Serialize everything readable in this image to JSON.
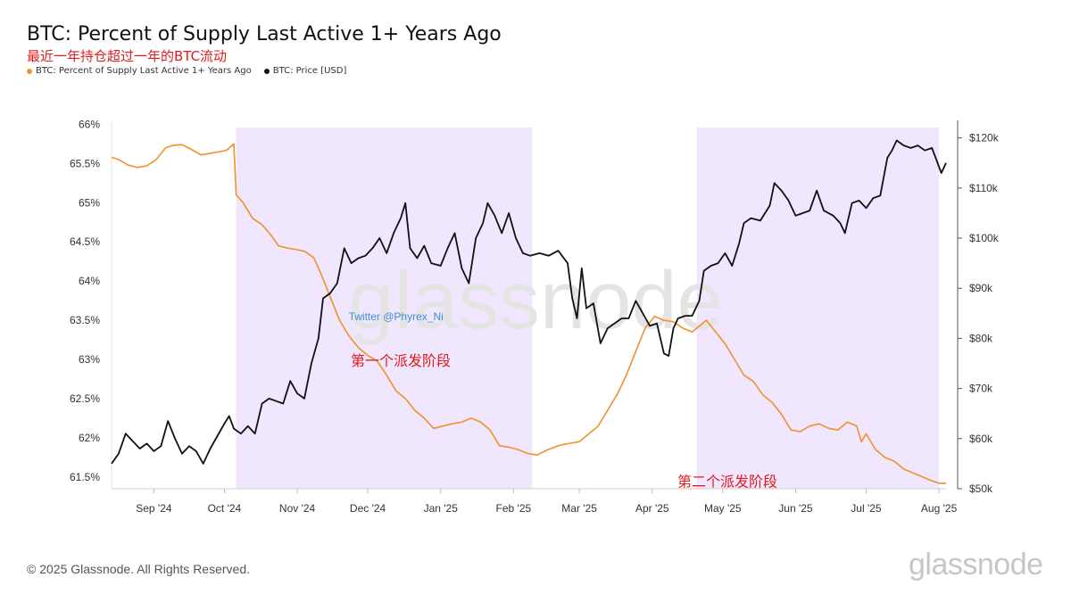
{
  "header": {
    "title": "BTC: Percent of Supply Last Active 1+ Years Ago",
    "subtitle": "最近一年持仓超过一年的BTC流动"
  },
  "legend": [
    {
      "label": "BTC: Percent of Supply Last Active 1+ Years Ago",
      "color": "#f0922b"
    },
    {
      "label": "BTC: Price [USD]",
      "color": "#111111"
    }
  ],
  "footer": {
    "copyright": "© 2025 Glassnode. All Rights Reserved.",
    "brand": "glassnode"
  },
  "chart_data": {
    "type": "line",
    "x_range": [
      "2024-08-14",
      "2025-08-04"
    ],
    "x_ticks": [
      {
        "date": "2024-09-01",
        "label": "Sep '24"
      },
      {
        "date": "2024-10-01",
        "label": "Oct '24"
      },
      {
        "date": "2024-11-01",
        "label": "Nov '24"
      },
      {
        "date": "2024-12-01",
        "label": "Dec '24"
      },
      {
        "date": "2025-01-01",
        "label": "Jan '25"
      },
      {
        "date": "2025-02-01",
        "label": "Feb '25"
      },
      {
        "date": "2025-03-01",
        "label": "Mar '25"
      },
      {
        "date": "2025-04-01",
        "label": "Apr '25"
      },
      {
        "date": "2025-05-01",
        "label": "May '25"
      },
      {
        "date": "2025-06-01",
        "label": "Jun '25"
      },
      {
        "date": "2025-07-01",
        "label": "Jul '25"
      },
      {
        "date": "2025-08-01",
        "label": "Aug '25"
      }
    ],
    "y_left": {
      "range": [
        61.35,
        66.05
      ],
      "ticks": [
        61.5,
        62,
        62.5,
        63,
        63.5,
        64,
        64.5,
        65,
        65.5,
        66
      ],
      "tick_labels": [
        "61.5%",
        "62%",
        "62.5%",
        "63%",
        "63.5%",
        "64%",
        "64.5%",
        "65%",
        "65.5%",
        "66%"
      ]
    },
    "y_right": {
      "range": [
        50000,
        123500
      ],
      "ticks": [
        50000,
        60000,
        70000,
        80000,
        90000,
        100000,
        110000,
        120000
      ],
      "tick_labels": [
        "$50k",
        "$60k",
        "$70k",
        "$80k",
        "$90k",
        "$100k",
        "$110k",
        "$120k"
      ]
    },
    "shaded_regions": [
      {
        "start": "2024-10-06",
        "end": "2025-02-09",
        "color": "#f0e6fd"
      },
      {
        "start": "2025-04-20",
        "end": "2025-08-01",
        "color": "#f0e6fd"
      }
    ],
    "series": [
      {
        "name": "BTC: Percent of Supply Last Active 1+ Years Ago",
        "axis": "left",
        "color": "#f0922b",
        "points": [
          [
            "2024-08-14",
            65.58
          ],
          [
            "2024-08-17",
            65.55
          ],
          [
            "2024-08-21",
            65.48
          ],
          [
            "2024-08-25",
            65.45
          ],
          [
            "2024-08-29",
            65.47
          ],
          [
            "2024-09-02",
            65.55
          ],
          [
            "2024-09-06",
            65.7
          ],
          [
            "2024-09-09",
            65.73
          ],
          [
            "2024-09-13",
            65.74
          ],
          [
            "2024-09-17",
            65.68
          ],
          [
            "2024-09-21",
            65.61
          ],
          [
            "2024-09-25",
            65.63
          ],
          [
            "2024-09-29",
            65.65
          ],
          [
            "2024-10-02",
            65.67
          ],
          [
            "2024-10-05",
            65.75
          ],
          [
            "2024-10-06",
            65.1
          ],
          [
            "2024-10-09",
            65.0
          ],
          [
            "2024-10-13",
            64.8
          ],
          [
            "2024-10-17",
            64.72
          ],
          [
            "2024-10-21",
            64.58
          ],
          [
            "2024-10-24",
            64.45
          ],
          [
            "2024-10-28",
            64.42
          ],
          [
            "2024-11-01",
            64.4
          ],
          [
            "2024-11-04",
            64.38
          ],
          [
            "2024-11-08",
            64.3
          ],
          [
            "2024-11-11",
            64.1
          ],
          [
            "2024-11-15",
            63.8
          ],
          [
            "2024-11-19",
            63.5
          ],
          [
            "2024-11-23",
            63.3
          ],
          [
            "2024-11-27",
            63.15
          ],
          [
            "2024-12-01",
            63.05
          ],
          [
            "2024-12-05",
            62.98
          ],
          [
            "2024-12-09",
            62.8
          ],
          [
            "2024-12-13",
            62.6
          ],
          [
            "2024-12-17",
            62.5
          ],
          [
            "2024-12-21",
            62.35
          ],
          [
            "2024-12-25",
            62.25
          ],
          [
            "2024-12-29",
            62.12
          ],
          [
            "2025-01-02",
            62.15
          ],
          [
            "2025-01-06",
            62.18
          ],
          [
            "2025-01-10",
            62.2
          ],
          [
            "2025-01-14",
            62.25
          ],
          [
            "2025-01-18",
            62.2
          ],
          [
            "2025-01-22",
            62.1
          ],
          [
            "2025-01-26",
            61.9
          ],
          [
            "2025-01-30",
            61.88
          ],
          [
            "2025-02-03",
            61.85
          ],
          [
            "2025-02-07",
            61.8
          ],
          [
            "2025-02-11",
            61.78
          ],
          [
            "2025-02-15",
            61.84
          ],
          [
            "2025-02-20",
            61.9
          ],
          [
            "2025-02-25",
            61.93
          ],
          [
            "2025-03-01",
            61.95
          ],
          [
            "2025-03-05",
            62.05
          ],
          [
            "2025-03-09",
            62.15
          ],
          [
            "2025-03-13",
            62.35
          ],
          [
            "2025-03-17",
            62.55
          ],
          [
            "2025-03-21",
            62.8
          ],
          [
            "2025-03-25",
            63.1
          ],
          [
            "2025-03-29",
            63.4
          ],
          [
            "2025-04-02",
            63.55
          ],
          [
            "2025-04-06",
            63.5
          ],
          [
            "2025-04-10",
            63.48
          ],
          [
            "2025-04-14",
            63.4
          ],
          [
            "2025-04-18",
            63.35
          ],
          [
            "2025-04-20",
            63.4
          ],
          [
            "2025-04-24",
            63.5
          ],
          [
            "2025-04-28",
            63.35
          ],
          [
            "2025-05-02",
            63.2
          ],
          [
            "2025-05-06",
            63.0
          ],
          [
            "2025-05-10",
            62.8
          ],
          [
            "2025-05-14",
            62.72
          ],
          [
            "2025-05-18",
            62.55
          ],
          [
            "2025-05-22",
            62.45
          ],
          [
            "2025-05-26",
            62.3
          ],
          [
            "2025-05-30",
            62.1
          ],
          [
            "2025-06-03",
            62.08
          ],
          [
            "2025-06-07",
            62.15
          ],
          [
            "2025-06-11",
            62.18
          ],
          [
            "2025-06-15",
            62.12
          ],
          [
            "2025-06-19",
            62.1
          ],
          [
            "2025-06-23",
            62.2
          ],
          [
            "2025-06-27",
            62.15
          ],
          [
            "2025-06-29",
            61.95
          ],
          [
            "2025-07-01",
            62.05
          ],
          [
            "2025-07-05",
            61.85
          ],
          [
            "2025-07-09",
            61.75
          ],
          [
            "2025-07-13",
            61.7
          ],
          [
            "2025-07-17",
            61.6
          ],
          [
            "2025-07-21",
            61.55
          ],
          [
            "2025-07-25",
            61.5
          ],
          [
            "2025-07-29",
            61.45
          ],
          [
            "2025-08-01",
            61.42
          ],
          [
            "2025-08-04",
            61.42
          ]
        ]
      },
      {
        "name": "BTC: Price [USD]",
        "axis": "right",
        "color": "#111111",
        "points": [
          [
            "2024-08-14",
            55000
          ],
          [
            "2024-08-17",
            57000
          ],
          [
            "2024-08-20",
            61000
          ],
          [
            "2024-08-23",
            59500
          ],
          [
            "2024-08-26",
            58000
          ],
          [
            "2024-08-29",
            59000
          ],
          [
            "2024-09-01",
            57500
          ],
          [
            "2024-09-04",
            58500
          ],
          [
            "2024-09-07",
            63500
          ],
          [
            "2024-09-10",
            60000
          ],
          [
            "2024-09-13",
            57000
          ],
          [
            "2024-09-16",
            58500
          ],
          [
            "2024-09-19",
            57500
          ],
          [
            "2024-09-22",
            55000
          ],
          [
            "2024-09-25",
            58000
          ],
          [
            "2024-09-28",
            60500
          ],
          [
            "2024-10-01",
            63000
          ],
          [
            "2024-10-03",
            64500
          ],
          [
            "2024-10-05",
            62000
          ],
          [
            "2024-10-08",
            61000
          ],
          [
            "2024-10-11",
            62500
          ],
          [
            "2024-10-14",
            61000
          ],
          [
            "2024-10-17",
            67000
          ],
          [
            "2024-10-20",
            68000
          ],
          [
            "2024-10-23",
            67500
          ],
          [
            "2024-10-26",
            67000
          ],
          [
            "2024-10-29",
            71500
          ],
          [
            "2024-11-01",
            69000
          ],
          [
            "2024-11-04",
            68000
          ],
          [
            "2024-11-07",
            75000
          ],
          [
            "2024-11-10",
            80000
          ],
          [
            "2024-11-12",
            88000
          ],
          [
            "2024-11-15",
            89000
          ],
          [
            "2024-11-18",
            91000
          ],
          [
            "2024-11-21",
            98000
          ],
          [
            "2024-11-24",
            95000
          ],
          [
            "2024-11-27",
            96000
          ],
          [
            "2024-11-30",
            96500
          ],
          [
            "2024-12-03",
            98000
          ],
          [
            "2024-12-06",
            100000
          ],
          [
            "2024-12-09",
            97000
          ],
          [
            "2024-12-12",
            101000
          ],
          [
            "2024-12-15",
            104000
          ],
          [
            "2024-12-17",
            107000
          ],
          [
            "2024-12-19",
            98000
          ],
          [
            "2024-12-22",
            96000
          ],
          [
            "2024-12-25",
            98500
          ],
          [
            "2024-12-28",
            95000
          ],
          [
            "2025-01-01",
            94500
          ],
          [
            "2025-01-04",
            98000
          ],
          [
            "2025-01-07",
            101000
          ],
          [
            "2025-01-10",
            94000
          ],
          [
            "2025-01-13",
            91000
          ],
          [
            "2025-01-16",
            100000
          ],
          [
            "2025-01-19",
            103000
          ],
          [
            "2025-01-21",
            107000
          ],
          [
            "2025-01-24",
            104500
          ],
          [
            "2025-01-27",
            101000
          ],
          [
            "2025-01-30",
            105000
          ],
          [
            "2025-02-02",
            100000
          ],
          [
            "2025-02-05",
            97000
          ],
          [
            "2025-02-08",
            96500
          ],
          [
            "2025-02-12",
            97000
          ],
          [
            "2025-02-16",
            96500
          ],
          [
            "2025-02-20",
            97500
          ],
          [
            "2025-02-24",
            95000
          ],
          [
            "2025-02-26",
            88000
          ],
          [
            "2025-02-28",
            84000
          ],
          [
            "2025-03-02",
            94000
          ],
          [
            "2025-03-04",
            86000
          ],
          [
            "2025-03-07",
            87000
          ],
          [
            "2025-03-10",
            79000
          ],
          [
            "2025-03-13",
            82000
          ],
          [
            "2025-03-16",
            83000
          ],
          [
            "2025-03-19",
            84000
          ],
          [
            "2025-03-22",
            84000
          ],
          [
            "2025-03-25",
            87500
          ],
          [
            "2025-03-28",
            85000
          ],
          [
            "2025-03-31",
            82500
          ],
          [
            "2025-04-03",
            83000
          ],
          [
            "2025-04-06",
            77000
          ],
          [
            "2025-04-08",
            76500
          ],
          [
            "2025-04-10",
            82000
          ],
          [
            "2025-04-12",
            84000
          ],
          [
            "2025-04-15",
            84500
          ],
          [
            "2025-04-18",
            84500
          ],
          [
            "2025-04-21",
            87500
          ],
          [
            "2025-04-23",
            93500
          ],
          [
            "2025-04-26",
            94500
          ],
          [
            "2025-04-29",
            95000
          ],
          [
            "2025-05-02",
            97000
          ],
          [
            "2025-05-05",
            94500
          ],
          [
            "2025-05-08",
            99000
          ],
          [
            "2025-05-10",
            103000
          ],
          [
            "2025-05-13",
            104000
          ],
          [
            "2025-05-17",
            103500
          ],
          [
            "2025-05-21",
            106500
          ],
          [
            "2025-05-23",
            111000
          ],
          [
            "2025-05-26",
            109500
          ],
          [
            "2025-05-29",
            107500
          ],
          [
            "2025-06-01",
            104500
          ],
          [
            "2025-06-04",
            105000
          ],
          [
            "2025-06-07",
            105500
          ],
          [
            "2025-06-10",
            109500
          ],
          [
            "2025-06-13",
            105500
          ],
          [
            "2025-06-17",
            104500
          ],
          [
            "2025-06-20",
            103000
          ],
          [
            "2025-06-22",
            101000
          ],
          [
            "2025-06-25",
            107000
          ],
          [
            "2025-06-28",
            107500
          ],
          [
            "2025-07-01",
            106000
          ],
          [
            "2025-07-04",
            108000
          ],
          [
            "2025-07-07",
            108500
          ],
          [
            "2025-07-10",
            116000
          ],
          [
            "2025-07-12",
            117500
          ],
          [
            "2025-07-14",
            119500
          ],
          [
            "2025-07-17",
            118500
          ],
          [
            "2025-07-20",
            118000
          ],
          [
            "2025-07-23",
            118500
          ],
          [
            "2025-07-26",
            117500
          ],
          [
            "2025-07-29",
            118000
          ],
          [
            "2025-07-31",
            115500
          ],
          [
            "2025-08-02",
            113000
          ],
          [
            "2025-08-04",
            115000
          ]
        ]
      }
    ],
    "annotations": [
      {
        "text": "第一个派发阶段",
        "at": [
          "2024-12-15",
          62.92
        ],
        "axis": "left",
        "color": "#e01b1b"
      },
      {
        "text": "第二个派发阶段",
        "at": [
          "2025-05-03",
          61.38
        ],
        "axis": "left",
        "color": "#e01b1b"
      },
      {
        "text": "Twitter @Phyrex_Ni",
        "at": [
          "2024-12-13",
          63.5
        ],
        "axis": "left",
        "color": "#3a8fd6"
      }
    ],
    "watermark": "glassnode"
  }
}
